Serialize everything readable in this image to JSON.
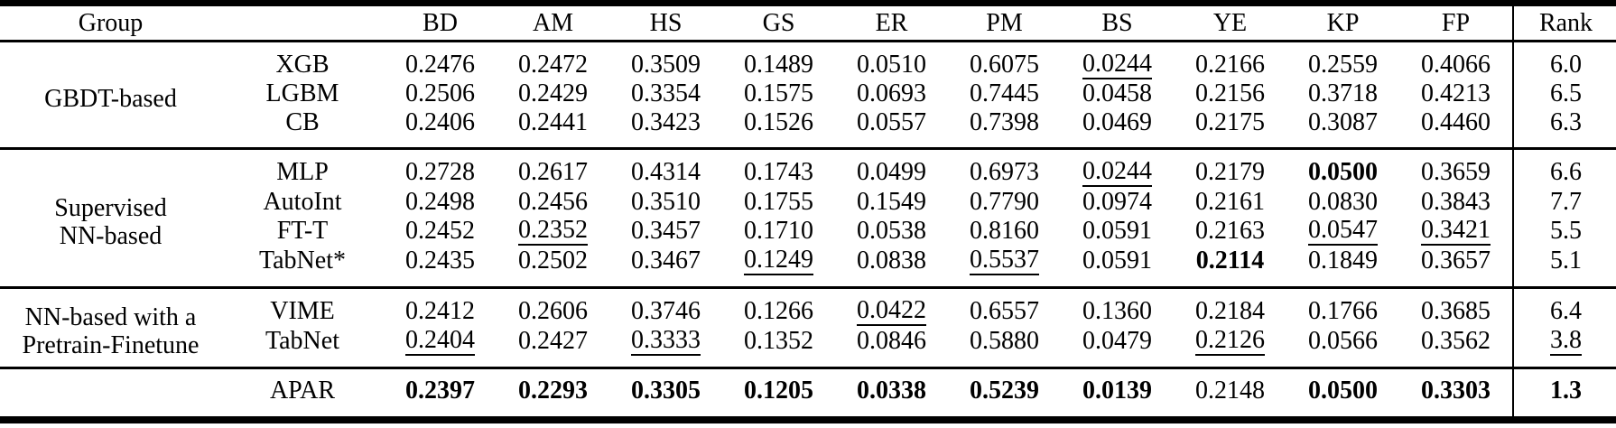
{
  "table": {
    "header": {
      "group": "Group",
      "model": "",
      "metrics": [
        "BD",
        "AM",
        "HS",
        "GS",
        "ER",
        "PM",
        "BS",
        "YE",
        "KP",
        "FP"
      ],
      "rank": "Rank"
    },
    "sections": [
      {
        "group_label_lines": [
          "GBDT-based"
        ],
        "rows": [
          {
            "model": "XGB",
            "values": [
              {
                "v": "0.2476"
              },
              {
                "v": "0.2472"
              },
              {
                "v": "0.3509"
              },
              {
                "v": "0.1489"
              },
              {
                "v": "0.0510"
              },
              {
                "v": "0.6075"
              },
              {
                "v": "0.0244",
                "u": true
              },
              {
                "v": "0.2166"
              },
              {
                "v": "0.2559"
              },
              {
                "v": "0.4066"
              }
            ],
            "rank": {
              "v": "6.0"
            }
          },
          {
            "model": "LGBM",
            "values": [
              {
                "v": "0.2506"
              },
              {
                "v": "0.2429"
              },
              {
                "v": "0.3354"
              },
              {
                "v": "0.1575"
              },
              {
                "v": "0.0693"
              },
              {
                "v": "0.7445"
              },
              {
                "v": "0.0458"
              },
              {
                "v": "0.2156"
              },
              {
                "v": "0.3718"
              },
              {
                "v": "0.4213"
              }
            ],
            "rank": {
              "v": "6.5"
            }
          },
          {
            "model": "CB",
            "values": [
              {
                "v": "0.2406"
              },
              {
                "v": "0.2441"
              },
              {
                "v": "0.3423"
              },
              {
                "v": "0.1526"
              },
              {
                "v": "0.0557"
              },
              {
                "v": "0.7398"
              },
              {
                "v": "0.0469"
              },
              {
                "v": "0.2175"
              },
              {
                "v": "0.3087"
              },
              {
                "v": "0.4460"
              }
            ],
            "rank": {
              "v": "6.3"
            }
          }
        ]
      },
      {
        "group_label_lines": [
          "Supervised",
          "NN-based"
        ],
        "rows": [
          {
            "model": "MLP",
            "values": [
              {
                "v": "0.2728"
              },
              {
                "v": "0.2617"
              },
              {
                "v": "0.4314"
              },
              {
                "v": "0.1743"
              },
              {
                "v": "0.0499"
              },
              {
                "v": "0.6973"
              },
              {
                "v": "0.0244",
                "u": true
              },
              {
                "v": "0.2179"
              },
              {
                "v": "0.0500",
                "b": true
              },
              {
                "v": "0.3659"
              }
            ],
            "rank": {
              "v": "6.6"
            }
          },
          {
            "model": "AutoInt",
            "values": [
              {
                "v": "0.2498"
              },
              {
                "v": "0.2456"
              },
              {
                "v": "0.3510"
              },
              {
                "v": "0.1755"
              },
              {
                "v": "0.1549"
              },
              {
                "v": "0.7790"
              },
              {
                "v": "0.0974"
              },
              {
                "v": "0.2161"
              },
              {
                "v": "0.0830"
              },
              {
                "v": "0.3843"
              }
            ],
            "rank": {
              "v": "7.7"
            }
          },
          {
            "model": "FT-T",
            "values": [
              {
                "v": "0.2452"
              },
              {
                "v": "0.2352",
                "u": true
              },
              {
                "v": "0.3457"
              },
              {
                "v": "0.1710"
              },
              {
                "v": "0.0538"
              },
              {
                "v": "0.8160"
              },
              {
                "v": "0.0591"
              },
              {
                "v": "0.2163"
              },
              {
                "v": "0.0547",
                "u": true
              },
              {
                "v": "0.3421",
                "u": true
              }
            ],
            "rank": {
              "v": "5.5"
            }
          },
          {
            "model": "TabNet*",
            "values": [
              {
                "v": "0.2435"
              },
              {
                "v": "0.2502"
              },
              {
                "v": "0.3467"
              },
              {
                "v": "0.1249",
                "u": true
              },
              {
                "v": "0.0838"
              },
              {
                "v": "0.5537",
                "u": true
              },
              {
                "v": "0.0591"
              },
              {
                "v": "0.2114",
                "b": true
              },
              {
                "v": "0.1849"
              },
              {
                "v": "0.3657"
              }
            ],
            "rank": {
              "v": "5.1"
            }
          }
        ]
      },
      {
        "group_label_lines": [
          "NN-based with a",
          "Pretrain-Finetune"
        ],
        "rows": [
          {
            "model": "VIME",
            "values": [
              {
                "v": "0.2412"
              },
              {
                "v": "0.2606"
              },
              {
                "v": "0.3746"
              },
              {
                "v": "0.1266"
              },
              {
                "v": "0.0422",
                "u": true
              },
              {
                "v": "0.6557"
              },
              {
                "v": "0.1360"
              },
              {
                "v": "0.2184"
              },
              {
                "v": "0.1766"
              },
              {
                "v": "0.3685"
              }
            ],
            "rank": {
              "v": "6.4"
            }
          },
          {
            "model": "TabNet",
            "values": [
              {
                "v": "0.2404",
                "u": true
              },
              {
                "v": "0.2427"
              },
              {
                "v": "0.3333",
                "u": true
              },
              {
                "v": "0.1352"
              },
              {
                "v": "0.0846"
              },
              {
                "v": "0.5880"
              },
              {
                "v": "0.0479"
              },
              {
                "v": "0.2126",
                "u": true
              },
              {
                "v": "0.0566"
              },
              {
                "v": "0.3562"
              }
            ],
            "rank": {
              "v": "3.8",
              "u": true
            }
          }
        ]
      },
      {
        "group_label_lines": [],
        "rows": [
          {
            "model": "APAR",
            "values": [
              {
                "v": "0.2397",
                "b": true
              },
              {
                "v": "0.2293",
                "b": true
              },
              {
                "v": "0.3305",
                "b": true
              },
              {
                "v": "0.1205",
                "b": true
              },
              {
                "v": "0.0338",
                "b": true
              },
              {
                "v": "0.5239",
                "b": true
              },
              {
                "v": "0.0139",
                "b": true
              },
              {
                "v": "0.2148"
              },
              {
                "v": "0.0500",
                "b": true
              },
              {
                "v": "0.3303",
                "b": true
              }
            ],
            "rank": {
              "v": "1.3",
              "b": true
            }
          }
        ]
      }
    ]
  }
}
